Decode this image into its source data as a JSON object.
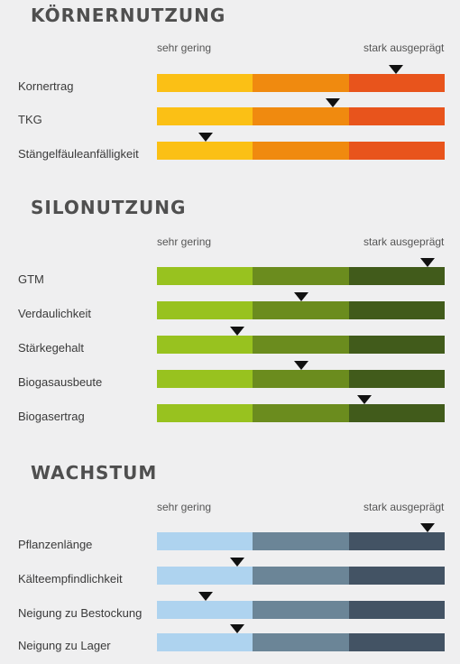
{
  "scale": {
    "low_label": "sehr gering",
    "high_label": "stark ausgeprägt"
  },
  "sections": [
    {
      "title": "KÖRNERNUTZUNG",
      "colors": [
        "#fbc015",
        "#f08a0f",
        "#e8541c"
      ]
    },
    {
      "title": "SILONUTZUNG",
      "colors": [
        "#98c21f",
        "#6b8c1e",
        "#415b1b"
      ]
    },
    {
      "title": "WACHSTUM",
      "colors": [
        "#aed3ef",
        "#6b8597",
        "#435364"
      ]
    }
  ],
  "chart_data": [
    {
      "type": "bar",
      "title": "KÖRNERNUTZUNG",
      "scale_labels": [
        "sehr gering",
        "stark ausgeprägt"
      ],
      "scale_range": [
        0,
        1
      ],
      "categories": [
        "Kornertrag",
        "TKG",
        "Stängelfäuleanfälligkeit"
      ],
      "values": [
        0.83,
        0.61,
        0.17
      ]
    },
    {
      "type": "bar",
      "title": "SILONUTZUNG",
      "scale_labels": [
        "sehr gering",
        "stark ausgeprägt"
      ],
      "scale_range": [
        0,
        1
      ],
      "categories": [
        "GTM",
        "Verdaulichkeit",
        "Stärkegehalt",
        "Biogasausbeute",
        "Biogasertrag"
      ],
      "values": [
        0.94,
        0.5,
        0.28,
        0.5,
        0.72
      ]
    },
    {
      "type": "bar",
      "title": "WACHSTUM",
      "scale_labels": [
        "sehr gering",
        "stark ausgeprägt"
      ],
      "scale_range": [
        0,
        1
      ],
      "categories": [
        "Pflanzenlänge",
        "Kälteempfindlichkeit",
        "Neigung zu Bestockung",
        "Neigung zu Lager"
      ],
      "values": [
        0.94,
        0.28,
        0.17,
        0.28
      ]
    }
  ]
}
